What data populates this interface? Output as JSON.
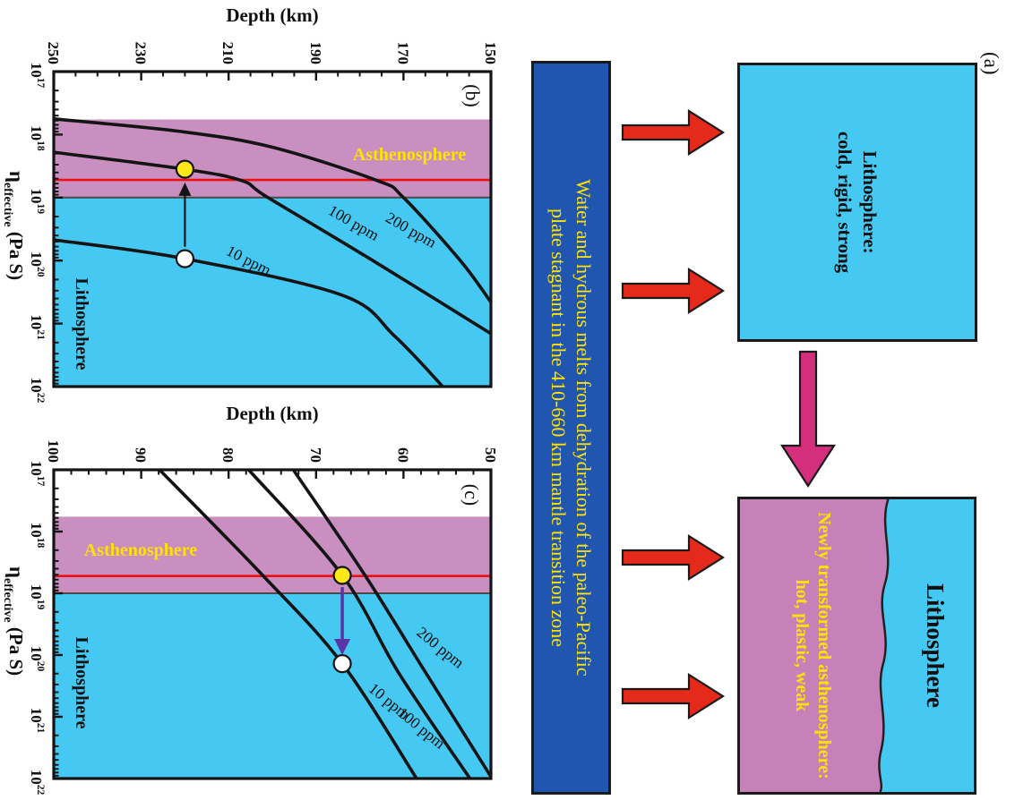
{
  "figure_labels": {
    "a": "(a)",
    "b": "(b)",
    "c": "(c)"
  },
  "panel_a": {
    "box1_line1": "Lithosphere:",
    "box1_line2": "cold, rigid, strong",
    "box2_top": "Lithosphere",
    "box2_bottom_line1": "Newly transformed asthenosphere:",
    "box2_bottom_line2": "hot, plastic, weak"
  },
  "banner": {
    "line1": "Water and hydrous melts from dehydration of the paleo-Pacific",
    "line2": "plate stagnant in the 410-660 km mantle transition zone"
  },
  "colors": {
    "lithosphere_cyan": "#45c8f2",
    "asthenosphere_pink": "#c98fc0",
    "box_purple": "#c581b8",
    "banner_blue": "#2055b0",
    "text_yellow": "#ffe200",
    "red_arrow": "#e52a1c",
    "pink_arrow": "#d42e7d",
    "purple_arrow": "#5b35a8",
    "red_line": "#ee1010",
    "marker_yellow": "#ffe81a",
    "marker_white": "#ffffff",
    "line_black": "#141414"
  },
  "chart_data": [
    {
      "type": "line",
      "panel": "(b)",
      "depth_axis": {
        "label": "Depth (km)",
        "min": 150,
        "max": 250,
        "major_ticks": [
          150,
          170,
          190,
          210,
          230,
          250
        ],
        "minor_step": 5
      },
      "viscosity_axis": {
        "symbol": "η",
        "subscript": "effective",
        "unit": "(Pa S)",
        "log_min": 17,
        "log_max": 22
      },
      "asthenosphere_band_log_eta": [
        17.76,
        19.0
      ],
      "red_line_log_eta": 18.72,
      "zone_labels": {
        "asthenosphere": "Asthenosphere",
        "lithosphere": "Lithosphere"
      },
      "series": [
        {
          "name": "10 ppm",
          "points_log_eta_depth": [
            [
              19.67,
              250
            ],
            [
              19.97,
              220
            ],
            [
              20.55,
              184
            ],
            [
              21.2,
              172
            ],
            [
              22.0,
              161
            ]
          ]
        },
        {
          "name": "100 ppm",
          "points_log_eta_depth": [
            [
              18.28,
              250
            ],
            [
              18.55,
              220
            ],
            [
              18.73,
              207
            ],
            [
              19.0,
              201
            ],
            [
              20.0,
              177
            ],
            [
              21.16,
              150
            ]
          ]
        },
        {
          "name": "200 ppm",
          "points_log_eta_depth": [
            [
              17.75,
              250
            ],
            [
              17.95,
              221
            ],
            [
              18.2,
              200
            ],
            [
              18.73,
              176
            ],
            [
              19.0,
              170
            ],
            [
              20.0,
              157
            ],
            [
              20.66,
              150
            ]
          ]
        }
      ],
      "markers": [
        {
          "fill": "yellow",
          "log_eta": 18.55,
          "depth": 220
        },
        {
          "fill": "white",
          "log_eta": 19.97,
          "depth": 220
        }
      ],
      "arrow": {
        "depth": 220,
        "from_log_eta": 19.78,
        "to_log_eta": 18.76,
        "color_key": "black"
      }
    },
    {
      "type": "line",
      "panel": "(c)",
      "depth_axis": {
        "label": "Depth (km)",
        "min": 50,
        "max": 100,
        "major_ticks": [
          50,
          60,
          70,
          80,
          90,
          100
        ],
        "minor_step": 2
      },
      "viscosity_axis": {
        "symbol": "η",
        "subscript": "effective",
        "unit": "(Pa S)",
        "log_min": 17,
        "log_max": 22
      },
      "asthenosphere_band_log_eta": [
        17.76,
        19.0
      ],
      "red_line_log_eta": 18.72,
      "zone_labels": {
        "asthenosphere": "Asthenosphere",
        "lithosphere": "Lithosphere"
      },
      "series": [
        {
          "name": "10 ppm",
          "points_log_eta_depth": [
            [
              17.0,
              87.9
            ],
            [
              18.71,
              76.1
            ],
            [
              20.14,
              67.0
            ],
            [
              22.0,
              58.5
            ]
          ]
        },
        {
          "name": "100 ppm",
          "points_log_eta_depth": [
            [
              17.0,
              77.7
            ],
            [
              18.71,
              67.0
            ],
            [
              20.3,
              60.5
            ],
            [
              22.0,
              52.4
            ]
          ]
        },
        {
          "name": "200 ppm",
          "points_log_eta_depth": [
            [
              17.0,
              72.6
            ],
            [
              18.71,
              64.4
            ],
            [
              20.3,
              57.4
            ],
            [
              21.97,
              50.0
            ]
          ]
        }
      ],
      "markers": [
        {
          "fill": "yellow",
          "log_eta": 18.71,
          "depth": 67
        },
        {
          "fill": "white",
          "log_eta": 20.14,
          "depth": 67
        }
      ],
      "arrow": {
        "depth": 67,
        "from_log_eta": 18.9,
        "to_log_eta": 20.0,
        "color_key": "purple"
      }
    }
  ]
}
